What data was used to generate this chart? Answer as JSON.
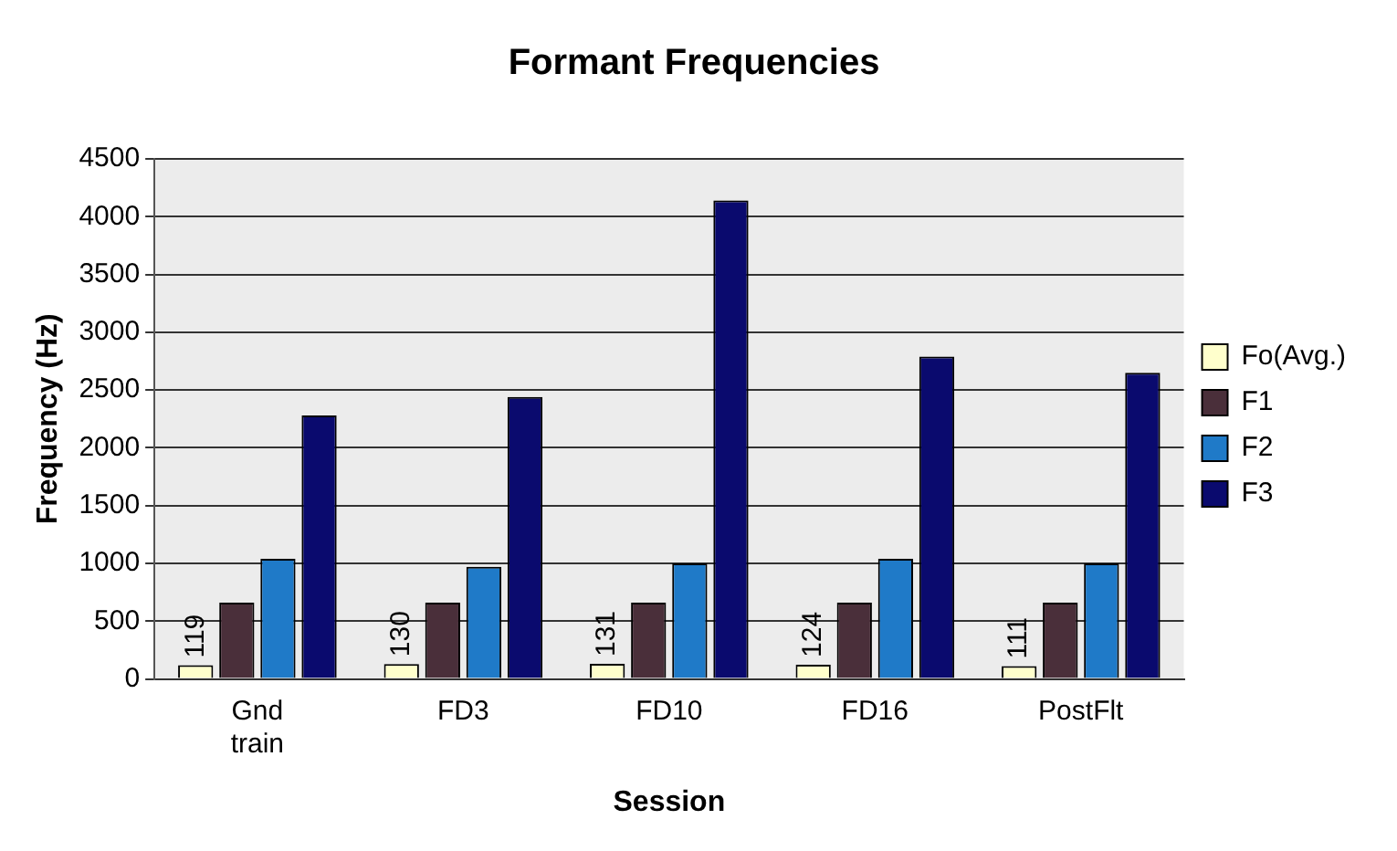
{
  "chart_data": {
    "type": "bar",
    "title": "Formant Frequencies",
    "xlabel": "Session",
    "ylabel": "Frequency (Hz)",
    "categories": [
      "Gnd train",
      "FD3",
      "FD10",
      "FD16",
      "PostFlt"
    ],
    "series": [
      {
        "name": "Fo(Avg.)",
        "color": "#ffffcc",
        "values": [
          119,
          130,
          131,
          124,
          111
        ],
        "value_labels": [
          "119",
          "130",
          "131",
          "124",
          "111"
        ]
      },
      {
        "name": "F1",
        "color": "#4a2f3a",
        "values": [
          660,
          660,
          660,
          660,
          660
        ]
      },
      {
        "name": "F2",
        "color": "#1f7ac8",
        "values": [
          1040,
          970,
          1000,
          1040,
          1000
        ]
      },
      {
        "name": "F3",
        "color": "#0a0a6e",
        "values": [
          2280,
          2440,
          4140,
          2790,
          2650
        ]
      }
    ],
    "ylim": [
      0,
      4500
    ],
    "yticks": [
      0,
      500,
      1000,
      1500,
      2000,
      2500,
      3000,
      3500,
      4000,
      4500
    ],
    "grid": "y",
    "legend": "right"
  }
}
